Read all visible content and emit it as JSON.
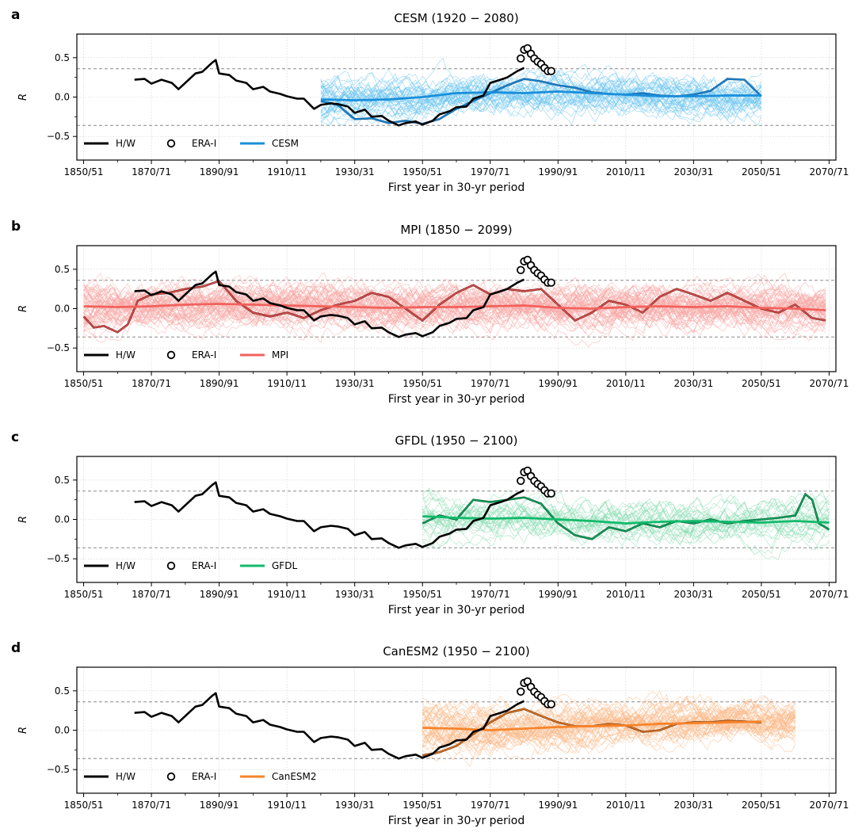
{
  "figure": {
    "x_axis_ticks": [
      "1850/51",
      "1870/71",
      "1890/91",
      "1910/11",
      "1930/31",
      "1950/51",
      "1970/71",
      "1990/91",
      "2010/11",
      "2030/31",
      "2050/51",
      "2070/71"
    ],
    "x_axis_label": "First year in 30-yr period",
    "y_axis_label": "R",
    "y_ticks": [
      "0.5",
      "0.0",
      "−0.5"
    ],
    "legend_obs_line": "H/W",
    "legend_obs_circles": "ERA-I",
    "colors": {
      "observed": "#000000",
      "grid": "#cccccc",
      "threshold": "#888888"
    }
  },
  "chart_data": [
    {
      "type": "line",
      "panel_label": "a",
      "title": "CESM (1920 − 2080)",
      "legend_model": "CESM",
      "color": "#1a8fdb",
      "dark_color": "#1a5f9a",
      "ensemble_color": "#6fc6ef",
      "xlim": [
        1848,
        2072
      ],
      "ylim": [
        -0.8,
        0.8
      ],
      "threshold": 0.36,
      "ensemble_range": [
        1920,
        2050
      ],
      "ensemble_members": 40,
      "observed_hw": {
        "x": [
          1865,
          1868,
          1870,
          1873,
          1876,
          1878,
          1880,
          1883,
          1885,
          1888,
          1889,
          1890,
          1893,
          1895,
          1898,
          1900,
          1903,
          1905,
          1908,
          1910,
          1913,
          1915,
          1918,
          1920,
          1923,
          1925,
          1928,
          1930,
          1933,
          1935,
          1938,
          1940,
          1943,
          1945,
          1948,
          1950,
          1953,
          1955,
          1958,
          1960,
          1963,
          1965,
          1968,
          1970,
          1973,
          1975,
          1978,
          1980
        ],
        "y": [
          0.22,
          0.23,
          0.17,
          0.22,
          0.18,
          0.1,
          0.18,
          0.3,
          0.32,
          0.44,
          0.47,
          0.3,
          0.28,
          0.21,
          0.18,
          0.1,
          0.13,
          0.07,
          0.04,
          0.01,
          -0.02,
          -0.02,
          -0.15,
          -0.1,
          -0.08,
          -0.09,
          -0.12,
          -0.2,
          -0.16,
          -0.25,
          -0.24,
          -0.3,
          -0.36,
          -0.33,
          -0.31,
          -0.35,
          -0.3,
          -0.22,
          -0.18,
          -0.13,
          -0.12,
          -0.02,
          0.02,
          0.18,
          0.22,
          0.25,
          0.33,
          0.37
        ]
      },
      "observed_era": {
        "x": [
          1979,
          1980,
          1981,
          1982,
          1983,
          1984,
          1985,
          1986,
          1987,
          1988
        ],
        "y": [
          0.49,
          0.6,
          0.62,
          0.55,
          0.49,
          0.45,
          0.42,
          0.37,
          0.33,
          0.33
        ]
      },
      "ensemble_mean": {
        "x": [
          1920,
          1930,
          1940,
          1950,
          1960,
          1970,
          1980,
          1990,
          2000,
          2010,
          2020,
          2030,
          2040,
          2050
        ],
        "y": [
          -0.03,
          -0.04,
          -0.03,
          0.0,
          0.05,
          0.06,
          0.05,
          0.07,
          0.05,
          0.03,
          0.01,
          0.01,
          0.02,
          0.02
        ]
      },
      "highlight_member": {
        "x": [
          1920,
          1925,
          1930,
          1935,
          1940,
          1945,
          1950,
          1955,
          1960,
          1965,
          1970,
          1975,
          1980,
          1985,
          1990,
          1995,
          2000,
          2005,
          2010,
          2015,
          2020,
          2025,
          2030,
          2035,
          2040,
          2045,
          2050
        ],
        "y": [
          -0.05,
          -0.1,
          -0.28,
          -0.27,
          -0.33,
          -0.3,
          -0.34,
          -0.28,
          -0.15,
          -0.05,
          0.05,
          0.15,
          0.23,
          0.2,
          0.15,
          0.12,
          0.06,
          0.04,
          0.03,
          0.05,
          0.02,
          0.01,
          0.03,
          0.08,
          0.23,
          0.22,
          0.01
        ]
      }
    },
    {
      "type": "line",
      "panel_label": "b",
      "title": "MPI (1850 − 2099)",
      "legend_model": "MPI",
      "color": "#f2615c",
      "dark_color": "#7a2020",
      "ensemble_color": "#f7a8a5",
      "xlim": [
        1848,
        2072
      ],
      "ylim": [
        -0.8,
        0.8
      ],
      "threshold": 0.36,
      "ensemble_range": [
        1850,
        2069
      ],
      "ensemble_members": 60,
      "observed_hw": {
        "x": [
          1865,
          1868,
          1870,
          1873,
          1876,
          1878,
          1880,
          1883,
          1885,
          1888,
          1889,
          1890,
          1893,
          1895,
          1898,
          1900,
          1903,
          1905,
          1908,
          1910,
          1913,
          1915,
          1918,
          1920,
          1923,
          1925,
          1928,
          1930,
          1933,
          1935,
          1938,
          1940,
          1943,
          1945,
          1948,
          1950,
          1953,
          1955,
          1958,
          1960,
          1963,
          1965,
          1968,
          1970,
          1973,
          1975,
          1978,
          1980
        ],
        "y": [
          0.22,
          0.23,
          0.17,
          0.22,
          0.18,
          0.1,
          0.18,
          0.3,
          0.32,
          0.44,
          0.47,
          0.3,
          0.28,
          0.21,
          0.18,
          0.1,
          0.13,
          0.07,
          0.04,
          0.01,
          -0.02,
          -0.02,
          -0.15,
          -0.1,
          -0.08,
          -0.09,
          -0.12,
          -0.2,
          -0.16,
          -0.25,
          -0.24,
          -0.3,
          -0.36,
          -0.33,
          -0.31,
          -0.35,
          -0.3,
          -0.22,
          -0.18,
          -0.13,
          -0.12,
          -0.02,
          0.02,
          0.18,
          0.22,
          0.25,
          0.33,
          0.37
        ]
      },
      "observed_era": {
        "x": [
          1979,
          1980,
          1981,
          1982,
          1983,
          1984,
          1985,
          1986,
          1987,
          1988
        ],
        "y": [
          0.49,
          0.6,
          0.62,
          0.55,
          0.49,
          0.45,
          0.42,
          0.37,
          0.33,
          0.33
        ]
      },
      "ensemble_mean": {
        "x": [
          1850,
          1860,
          1870,
          1880,
          1890,
          1900,
          1910,
          1920,
          1930,
          1940,
          1950,
          1960,
          1970,
          1980,
          1990,
          2000,
          2010,
          2020,
          2030,
          2040,
          2050,
          2060,
          2069
        ],
        "y": [
          0.03,
          0.02,
          0.03,
          0.05,
          0.06,
          0.05,
          0.04,
          0.03,
          0.02,
          0.01,
          0.02,
          0.02,
          0.03,
          0.04,
          0.01,
          0.0,
          0.02,
          0.03,
          0.02,
          0.03,
          0.01,
          0.0,
          -0.02
        ]
      },
      "highlight_member": {
        "x": [
          1850,
          1853,
          1856,
          1860,
          1863,
          1866,
          1870,
          1875,
          1880,
          1885,
          1890,
          1895,
          1900,
          1905,
          1910,
          1915,
          1920,
          1925,
          1930,
          1935,
          1940,
          1945,
          1950,
          1955,
          1960,
          1965,
          1970,
          1975,
          1980,
          1985,
          1990,
          1995,
          2000,
          2005,
          2010,
          2015,
          2020,
          2025,
          2030,
          2035,
          2040,
          2045,
          2050,
          2055,
          2060,
          2065,
          2069
        ],
        "y": [
          -0.1,
          -0.24,
          -0.22,
          -0.3,
          -0.2,
          0.1,
          0.18,
          0.2,
          0.25,
          0.28,
          0.35,
          0.1,
          -0.05,
          -0.1,
          -0.05,
          -0.12,
          -0.02,
          0.05,
          0.1,
          0.2,
          0.15,
          0.0,
          -0.15,
          0.05,
          0.2,
          0.3,
          0.18,
          0.25,
          0.22,
          0.25,
          0.05,
          -0.15,
          -0.05,
          0.1,
          0.05,
          -0.05,
          0.15,
          0.25,
          0.18,
          0.1,
          0.2,
          0.1,
          0.0,
          -0.05,
          0.05,
          -0.12,
          -0.15
        ]
      }
    },
    {
      "type": "line",
      "panel_label": "c",
      "title": "GFDL (1950 − 2100)",
      "legend_model": "GFDL",
      "color": "#11ba6c",
      "dark_color": "#0a5c33",
      "ensemble_color": "#8bdcb2",
      "xlim": [
        1848,
        2072
      ],
      "ylim": [
        -0.8,
        0.8
      ],
      "threshold": 0.36,
      "ensemble_range": [
        1950,
        2070
      ],
      "ensemble_members": 30,
      "observed_hw": {
        "x": [
          1865,
          1868,
          1870,
          1873,
          1876,
          1878,
          1880,
          1883,
          1885,
          1888,
          1889,
          1890,
          1893,
          1895,
          1898,
          1900,
          1903,
          1905,
          1908,
          1910,
          1913,
          1915,
          1918,
          1920,
          1923,
          1925,
          1928,
          1930,
          1933,
          1935,
          1938,
          1940,
          1943,
          1945,
          1948,
          1950,
          1953,
          1955,
          1958,
          1960,
          1963,
          1965,
          1968,
          1970,
          1973,
          1975,
          1978,
          1980
        ],
        "y": [
          0.22,
          0.23,
          0.17,
          0.22,
          0.18,
          0.1,
          0.18,
          0.3,
          0.32,
          0.44,
          0.47,
          0.3,
          0.28,
          0.21,
          0.18,
          0.1,
          0.13,
          0.07,
          0.04,
          0.01,
          -0.02,
          -0.02,
          -0.15,
          -0.1,
          -0.08,
          -0.09,
          -0.12,
          -0.2,
          -0.16,
          -0.25,
          -0.24,
          -0.3,
          -0.36,
          -0.33,
          -0.31,
          -0.35,
          -0.3,
          -0.22,
          -0.18,
          -0.13,
          -0.12,
          -0.02,
          0.02,
          0.18,
          0.22,
          0.25,
          0.33,
          0.37
        ]
      },
      "observed_era": {
        "x": [
          1979,
          1980,
          1981,
          1982,
          1983,
          1984,
          1985,
          1986,
          1987,
          1988
        ],
        "y": [
          0.49,
          0.6,
          0.62,
          0.55,
          0.49,
          0.45,
          0.42,
          0.37,
          0.33,
          0.33
        ]
      },
      "ensemble_mean": {
        "x": [
          1950,
          1960,
          1970,
          1980,
          1990,
          2000,
          2010,
          2020,
          2030,
          2040,
          2050,
          2060,
          2070
        ],
        "y": [
          0.04,
          0.02,
          0.01,
          0.02,
          0.0,
          -0.02,
          -0.05,
          -0.03,
          -0.02,
          -0.03,
          -0.04,
          -0.02,
          -0.04
        ]
      },
      "highlight_member": {
        "x": [
          1950,
          1955,
          1960,
          1965,
          1970,
          1975,
          1980,
          1985,
          1990,
          1995,
          2000,
          2005,
          2010,
          2015,
          2020,
          2025,
          2030,
          2035,
          2040,
          2045,
          2050,
          2055,
          2060,
          2063,
          2065,
          2067,
          2070
        ],
        "y": [
          -0.05,
          0.05,
          0.0,
          0.25,
          0.22,
          0.25,
          0.28,
          0.2,
          -0.05,
          -0.2,
          -0.25,
          -0.1,
          -0.15,
          -0.05,
          -0.1,
          -0.02,
          -0.05,
          0.0,
          -0.05,
          -0.02,
          0.0,
          0.02,
          0.05,
          0.32,
          0.25,
          -0.05,
          -0.13
        ]
      }
    },
    {
      "type": "line",
      "panel_label": "d",
      "title": "CanESM2 (1950 − 2100)",
      "legend_model": "CanESM2",
      "color": "#f7842a",
      "dark_color": "#7a3e10",
      "ensemble_color": "#fbb98a",
      "xlim": [
        1848,
        2072
      ],
      "ylim": [
        -0.8,
        0.8
      ],
      "threshold": 0.36,
      "ensemble_range": [
        1950,
        2060
      ],
      "ensemble_members": 50,
      "observed_hw": {
        "x": [
          1865,
          1868,
          1870,
          1873,
          1876,
          1878,
          1880,
          1883,
          1885,
          1888,
          1889,
          1890,
          1893,
          1895,
          1898,
          1900,
          1903,
          1905,
          1908,
          1910,
          1913,
          1915,
          1918,
          1920,
          1923,
          1925,
          1928,
          1930,
          1933,
          1935,
          1938,
          1940,
          1943,
          1945,
          1948,
          1950,
          1953,
          1955,
          1958,
          1960,
          1963,
          1965,
          1968,
          1970,
          1973,
          1975,
          1978,
          1980
        ],
        "y": [
          0.22,
          0.23,
          0.17,
          0.22,
          0.18,
          0.1,
          0.18,
          0.3,
          0.32,
          0.44,
          0.47,
          0.3,
          0.28,
          0.21,
          0.18,
          0.1,
          0.13,
          0.07,
          0.04,
          0.01,
          -0.02,
          -0.02,
          -0.15,
          -0.1,
          -0.08,
          -0.09,
          -0.12,
          -0.2,
          -0.16,
          -0.25,
          -0.24,
          -0.3,
          -0.36,
          -0.33,
          -0.31,
          -0.35,
          -0.3,
          -0.22,
          -0.18,
          -0.13,
          -0.12,
          -0.02,
          0.02,
          0.18,
          0.22,
          0.25,
          0.33,
          0.37
        ]
      },
      "observed_era": {
        "x": [
          1979,
          1980,
          1981,
          1982,
          1983,
          1984,
          1985,
          1986,
          1987,
          1988
        ],
        "y": [
          0.49,
          0.6,
          0.62,
          0.55,
          0.49,
          0.45,
          0.42,
          0.37,
          0.33,
          0.33
        ]
      },
      "ensemble_mean": {
        "x": [
          1950,
          1960,
          1970,
          1980,
          1990,
          2000,
          2010,
          2020,
          2030,
          2040,
          2050
        ],
        "y": [
          0.03,
          0.02,
          0.0,
          0.02,
          0.04,
          0.05,
          0.06,
          0.08,
          0.09,
          0.1,
          0.11
        ]
      },
      "highlight_member": {
        "x": [
          1950,
          1955,
          1960,
          1965,
          1970,
          1975,
          1980,
          1985,
          1990,
          1995,
          2000,
          2005,
          2010,
          2015,
          2020,
          2025,
          2030,
          2035,
          2040,
          2045,
          2050
        ],
        "y": [
          -0.32,
          -0.28,
          -0.2,
          -0.05,
          0.1,
          0.22,
          0.27,
          0.18,
          0.1,
          0.05,
          0.05,
          0.08,
          0.06,
          -0.02,
          0.0,
          0.08,
          0.1,
          0.1,
          0.12,
          0.11,
          0.1
        ]
      }
    }
  ]
}
